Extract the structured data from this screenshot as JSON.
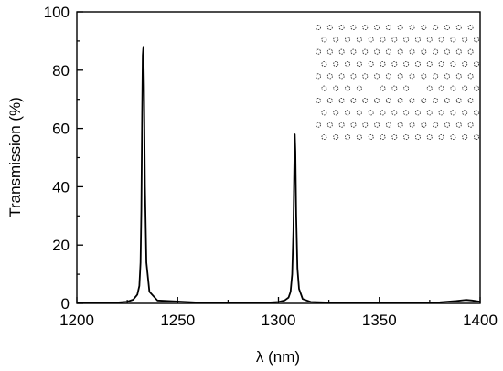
{
  "chart_data": {
    "type": "line",
    "title": "",
    "xlabel": "λ (nm)",
    "ylabel": "Transmission (%)",
    "xlim": [
      1200,
      1400
    ],
    "ylim": [
      0,
      100
    ],
    "x_ticks": [
      1200,
      1250,
      1300,
      1350,
      1400
    ],
    "y_ticks": [
      0,
      20,
      40,
      60,
      80,
      100
    ],
    "grid": false,
    "legend": "none",
    "line_color": "#000000",
    "series": [
      {
        "x": [
          1200,
          1210,
          1220,
          1225,
          1228,
          1230,
          1231,
          1231.6,
          1232,
          1232.4,
          1232.7,
          1233,
          1233.3,
          1233.8,
          1234.5,
          1236,
          1240,
          1260,
          1280,
          1295,
          1300,
          1303,
          1305,
          1306,
          1306.8,
          1307.4,
          1307.8,
          1308.1,
          1308.4,
          1308.8,
          1309.4,
          1310.2,
          1312,
          1316,
          1325,
          1350,
          1370,
          1380,
          1388,
          1393,
          1396,
          1400
        ],
        "y": [
          0.2,
          0.2,
          0.3,
          0.6,
          1.3,
          3.0,
          6.0,
          14.0,
          32.0,
          65.0,
          85.0,
          88.0,
          75.0,
          40.0,
          14.0,
          4.0,
          1.0,
          0.3,
          0.2,
          0.3,
          0.5,
          1.0,
          2.0,
          4.0,
          10.0,
          25.0,
          45.0,
          58.0,
          52.0,
          30.0,
          12.0,
          5.0,
          1.5,
          0.5,
          0.3,
          0.2,
          0.2,
          0.4,
          0.8,
          1.2,
          1.0,
          0.6
        ]
      }
    ]
  },
  "inset": {
    "icon": "photonic-crystal-lattice-icon",
    "rows": 10,
    "cols": 14,
    "defect_row_index": 5
  }
}
